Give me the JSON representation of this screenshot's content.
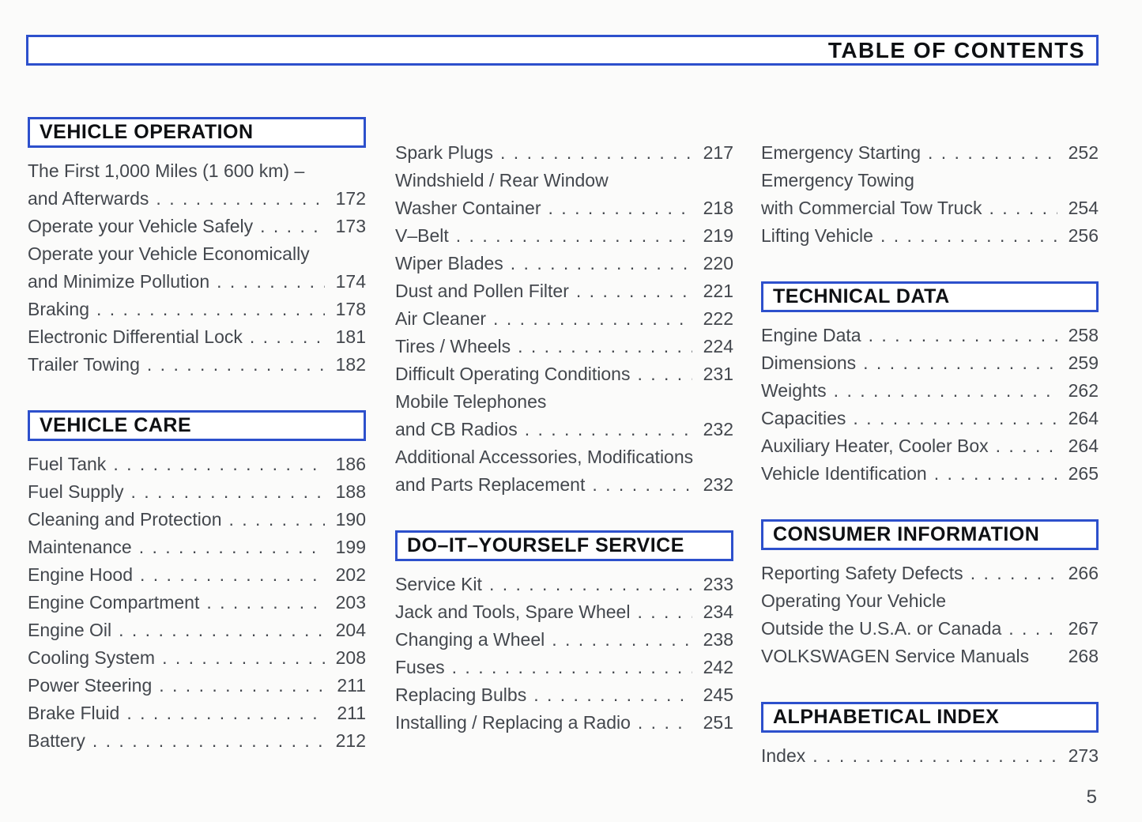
{
  "header": {
    "title": "TABLE OF CONTENTS"
  },
  "page_number": "5",
  "colors": {
    "accent_blue": "#2d50cc",
    "body_text": "#43474d",
    "heading_text": "#0e1013",
    "background": "#fbfbfa"
  },
  "columns": [
    {
      "sections": [
        {
          "title": "VEHICLE OPERATION",
          "items": [
            {
              "pre": [
                "The First 1,000 Miles (1 600 km) –"
              ],
              "label": "and Afterwards",
              "page": "172"
            },
            {
              "label": "Operate your Vehicle Safely",
              "page": "173"
            },
            {
              "pre": [
                "Operate your Vehicle Economically"
              ],
              "label": "and Minimize Pollution",
              "page": "174"
            },
            {
              "label": "Braking",
              "page": "178"
            },
            {
              "label": "Electronic Differential Lock",
              "page": "181"
            },
            {
              "label": "Trailer Towing",
              "page": "182"
            }
          ]
        },
        {
          "title": "VEHICLE CARE",
          "items": [
            {
              "label": "Fuel Tank",
              "page": "186"
            },
            {
              "label": "Fuel Supply",
              "page": "188"
            },
            {
              "label": "Cleaning and Protection",
              "page": "190"
            },
            {
              "label": "Maintenance",
              "page": "199"
            },
            {
              "label": "Engine Hood",
              "page": "202"
            },
            {
              "label": "Engine Compartment",
              "page": "203"
            },
            {
              "label": "Engine Oil",
              "page": "204"
            },
            {
              "label": "Cooling System",
              "page": "208"
            },
            {
              "label": "Power Steering",
              "page": "211"
            },
            {
              "label": "Brake Fluid",
              "page": "211"
            },
            {
              "label": "Battery",
              "page": "212"
            }
          ]
        }
      ]
    },
    {
      "sections": [
        {
          "title": null,
          "items": [
            {
              "label": "Spark Plugs",
              "page": "217"
            },
            {
              "pre": [
                "Windshield / Rear Window"
              ],
              "label": "Washer Container",
              "page": "218"
            },
            {
              "label": "V–Belt",
              "page": "219"
            },
            {
              "label": "Wiper Blades",
              "page": "220"
            },
            {
              "label": "Dust and Pollen Filter",
              "page": "221"
            },
            {
              "label": "Air Cleaner",
              "page": "222"
            },
            {
              "label": "Tires / Wheels",
              "page": "224"
            },
            {
              "label": "Difficult Operating Conditions",
              "page": "231"
            },
            {
              "pre": [
                "Mobile Telephones"
              ],
              "label": "and CB Radios",
              "page": "232"
            },
            {
              "pre": [
                "Additional Accessories, Modifications"
              ],
              "label": "and Parts Replacement",
              "page": "232"
            }
          ]
        },
        {
          "title": "DO–IT–YOURSELF SERVICE",
          "items": [
            {
              "label": "Service Kit",
              "page": "233"
            },
            {
              "label": "Jack and Tools, Spare Wheel",
              "page": "234"
            },
            {
              "label": "Changing a Wheel",
              "page": "238"
            },
            {
              "label": "Fuses",
              "page": "242"
            },
            {
              "label": "Replacing Bulbs",
              "page": "245"
            },
            {
              "label": "Installing / Replacing a Radio",
              "page": "251"
            }
          ]
        }
      ]
    },
    {
      "sections": [
        {
          "title": null,
          "items": [
            {
              "label": "Emergency Starting",
              "page": "252"
            },
            {
              "pre": [
                "Emergency Towing"
              ],
              "label": "with Commercial Tow Truck",
              "page": "254"
            },
            {
              "label": "Lifting Vehicle",
              "page": "256"
            }
          ]
        },
        {
          "title": "TECHNICAL DATA",
          "items": [
            {
              "label": "Engine Data",
              "page": "258"
            },
            {
              "label": "Dimensions",
              "page": "259"
            },
            {
              "label": "Weights",
              "page": "262"
            },
            {
              "label": "Capacities",
              "page": "264"
            },
            {
              "label": "Auxiliary Heater, Cooler Box",
              "page": "264"
            },
            {
              "label": "Vehicle Identification",
              "page": "265"
            }
          ]
        },
        {
          "title": "CONSUMER INFORMATION",
          "items": [
            {
              "label": "Reporting Safety Defects",
              "page": "266"
            },
            {
              "pre": [
                "Operating Your Vehicle"
              ],
              "label": "Outside the U.S.A. or Canada",
              "page": "267"
            },
            {
              "label": "VOLKSWAGEN Service Manuals",
              "page": "268",
              "dots": false
            }
          ]
        },
        {
          "title": "ALPHABETICAL INDEX",
          "items": [
            {
              "label": "Index",
              "page": "273"
            }
          ]
        }
      ]
    }
  ]
}
